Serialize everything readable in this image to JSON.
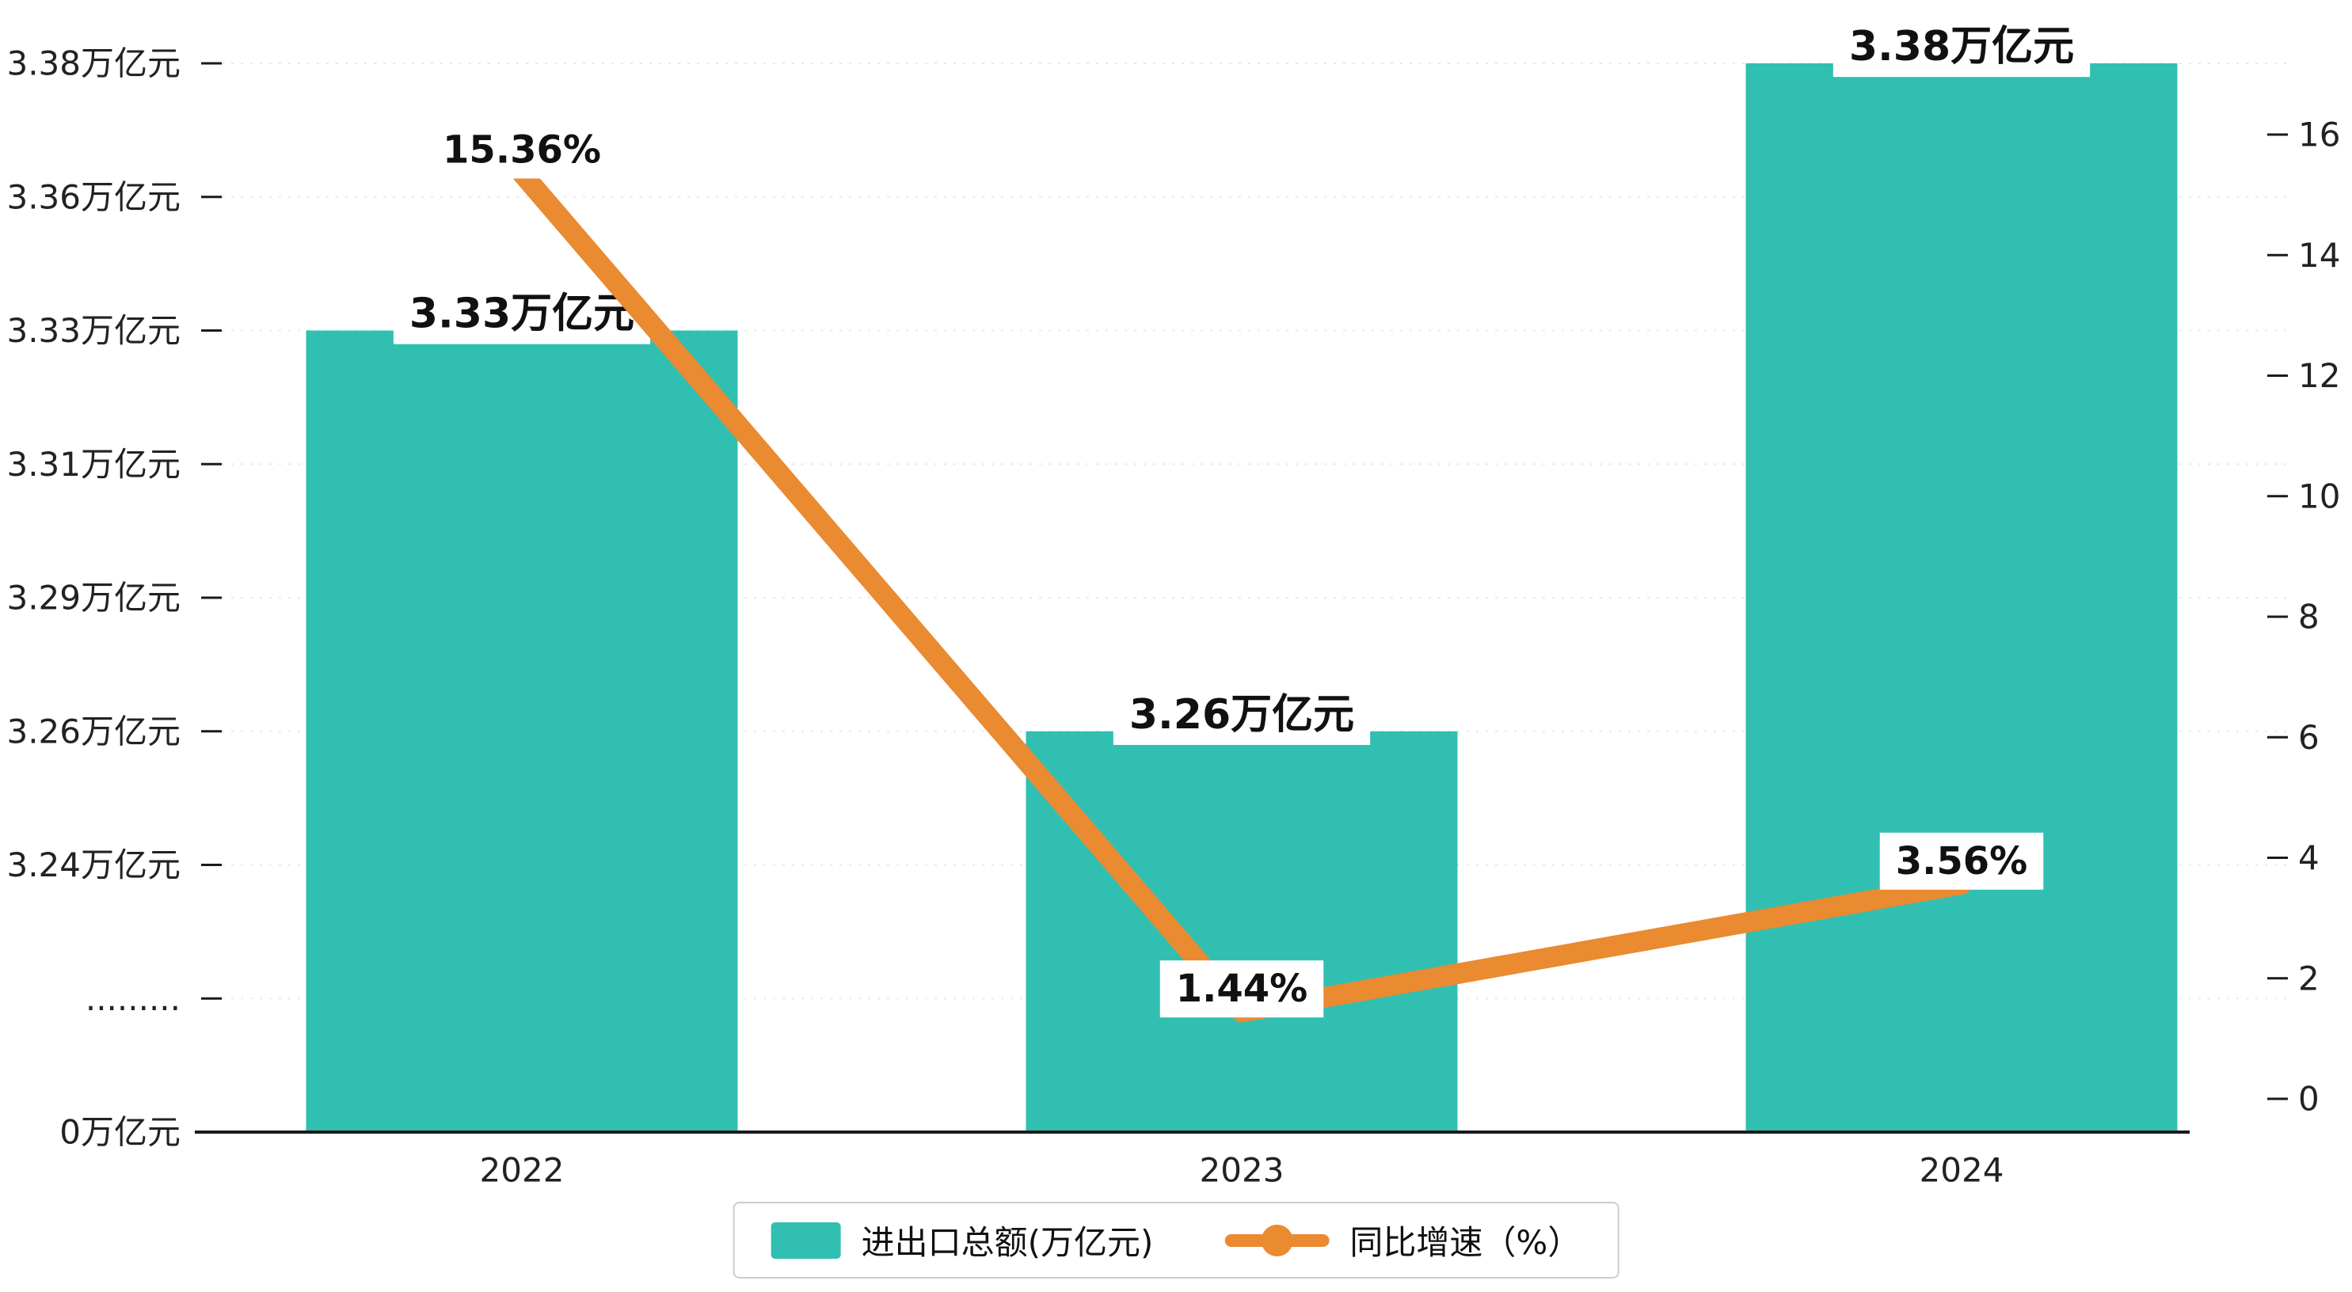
{
  "chart_data": {
    "type": "bar",
    "combo": "bar+line",
    "categories": [
      "2022",
      "2023",
      "2024"
    ],
    "series": [
      {
        "name": "进出口总额(万亿元)",
        "type": "bar",
        "axis": "left",
        "values": [
          3.33,
          3.26,
          3.38
        ],
        "labels": [
          "3.33万亿元",
          "3.26万亿元",
          "3.38万亿元"
        ],
        "color": "#31BFB2"
      },
      {
        "name": "同比增速（%）",
        "type": "line",
        "axis": "right",
        "values": [
          15.36,
          1.44,
          3.56
        ],
        "labels": [
          "15.36%",
          "1.44%",
          "3.56%"
        ],
        "color": "#EA8A31"
      }
    ],
    "left_axis": {
      "ticks": [
        "0万亿元",
        ".........",
        "3.24万亿元",
        "3.26万亿元",
        "3.29万亿元",
        "3.31万亿元",
        "3.33万亿元",
        "3.36万亿元",
        "3.38万亿元"
      ],
      "tick_values": [
        0,
        null,
        3.24,
        3.26,
        3.29,
        3.31,
        3.33,
        3.36,
        3.38
      ],
      "break": true
    },
    "right_axis": {
      "min": 0,
      "max": 16,
      "step": 2,
      "ticks": [
        0,
        2,
        4,
        6,
        8,
        10,
        12,
        14,
        16
      ]
    },
    "legend": {
      "position": "bottom",
      "items": [
        {
          "label": "进出口总额(万亿元)",
          "marker": "square",
          "color": "#31BFB2"
        },
        {
          "label": "同比增速（%）",
          "marker": "line-dot",
          "color": "#EA8A31"
        }
      ]
    },
    "grid": true,
    "title": ""
  },
  "colors": {
    "bar": "#31BFB2",
    "line": "#EA8A31",
    "axis": "#1a1a1a",
    "grid": "#e8e8e8",
    "text": "#222222",
    "label_text": "#111111",
    "label_bg": "#ffffff",
    "legend_border": "#cccccc"
  }
}
